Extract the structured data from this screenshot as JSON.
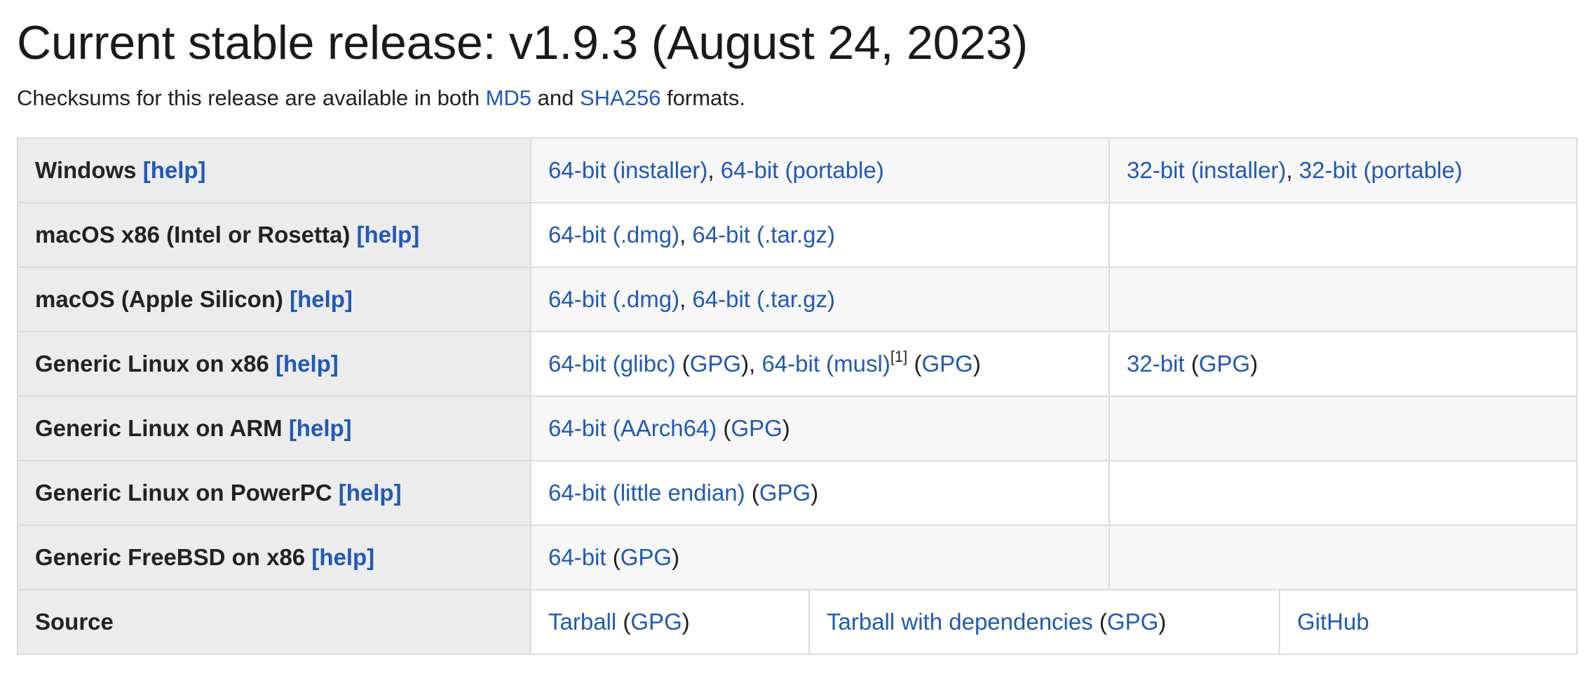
{
  "title": "Current stable release: v1.9.3 (August 24, 2023)",
  "checksums": {
    "prefix": "Checksums for this release are available in both ",
    "md5": "MD5",
    "and": " and ",
    "sha256": "SHA256",
    "suffix": " formats."
  },
  "help_label": "[help]",
  "gpg": "GPG",
  "footnote": "[1]",
  "rows": {
    "windows": {
      "label": "Windows",
      "col1": [
        "64-bit (installer)",
        "64-bit (portable)"
      ],
      "col2": [
        "32-bit (installer)",
        "32-bit (portable)"
      ]
    },
    "macos_x86": {
      "label": "macOS x86 (Intel or Rosetta)",
      "col1": [
        "64-bit (.dmg)",
        "64-bit (.tar.gz)"
      ]
    },
    "macos_arm": {
      "label": "macOS (Apple Silicon)",
      "col1": [
        "64-bit (.dmg)",
        "64-bit (.tar.gz)"
      ]
    },
    "linux_x86": {
      "label": "Generic Linux on x86",
      "col1": [
        "64-bit (glibc)",
        "64-bit (musl)"
      ],
      "col2": [
        "32-bit"
      ]
    },
    "linux_arm": {
      "label": "Generic Linux on ARM",
      "col1": [
        "64-bit (AArch64)"
      ]
    },
    "linux_ppc": {
      "label": "Generic Linux on PowerPC",
      "col1": [
        "64-bit (little endian)"
      ]
    },
    "freebsd": {
      "label": "Generic FreeBSD on x86",
      "col1": [
        "64-bit"
      ]
    },
    "source": {
      "label": "Source",
      "tarball": "Tarball",
      "tarball_deps": "Tarball with dependencies",
      "github": "GitHub"
    }
  }
}
